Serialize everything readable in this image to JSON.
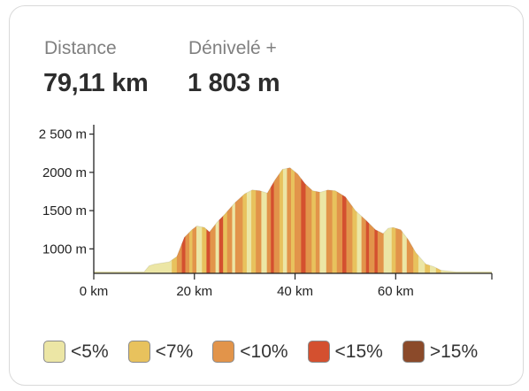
{
  "stats": {
    "distance_label": "Distance",
    "distance_value": "79,11 km",
    "elevation_label": "Dénivelé +",
    "elevation_value": "1 803 m"
  },
  "chart_data": {
    "type": "area",
    "title": "",
    "xlabel": "",
    "ylabel": "",
    "x_unit": "km",
    "y_unit": "m",
    "xlim": [
      0,
      79.11
    ],
    "ylim": [
      680,
      2530
    ],
    "x_ticks": [
      0,
      20,
      40,
      60
    ],
    "x_tick_labels": [
      "0 km",
      "20 km",
      "40 km",
      "60 km"
    ],
    "y_ticks": [
      1000,
      1500,
      2000,
      2500
    ],
    "y_tick_labels": [
      "1000 m",
      "1500 m",
      "2000 m",
      "2 500 m"
    ],
    "grid": false,
    "legend_position": "bottom",
    "profile": [
      {
        "x": 0,
        "y": 700
      },
      {
        "x": 10,
        "y": 700
      },
      {
        "x": 11,
        "y": 780
      },
      {
        "x": 12,
        "y": 800
      },
      {
        "x": 15,
        "y": 830
      },
      {
        "x": 16.5,
        "y": 900
      },
      {
        "x": 18,
        "y": 1150
      },
      {
        "x": 19.5,
        "y": 1250
      },
      {
        "x": 20.5,
        "y": 1300
      },
      {
        "x": 22,
        "y": 1280
      },
      {
        "x": 23,
        "y": 1220
      },
      {
        "x": 24.5,
        "y": 1350
      },
      {
        "x": 26,
        "y": 1450
      },
      {
        "x": 28,
        "y": 1600
      },
      {
        "x": 30,
        "y": 1720
      },
      {
        "x": 31.5,
        "y": 1770
      },
      {
        "x": 33,
        "y": 1760
      },
      {
        "x": 34.5,
        "y": 1730
      },
      {
        "x": 36,
        "y": 1900
      },
      {
        "x": 37.5,
        "y": 2040
      },
      {
        "x": 39,
        "y": 2060
      },
      {
        "x": 40.5,
        "y": 1980
      },
      {
        "x": 42,
        "y": 1850
      },
      {
        "x": 43.5,
        "y": 1760
      },
      {
        "x": 45,
        "y": 1740
      },
      {
        "x": 46.5,
        "y": 1770
      },
      {
        "x": 48,
        "y": 1760
      },
      {
        "x": 50,
        "y": 1680
      },
      {
        "x": 52,
        "y": 1500
      },
      {
        "x": 54,
        "y": 1380
      },
      {
        "x": 56,
        "y": 1250
      },
      {
        "x": 57.5,
        "y": 1200
      },
      {
        "x": 58.5,
        "y": 1270
      },
      {
        "x": 59.5,
        "y": 1280
      },
      {
        "x": 61,
        "y": 1250
      },
      {
        "x": 62.5,
        "y": 1120
      },
      {
        "x": 64,
        "y": 950
      },
      {
        "x": 66,
        "y": 800
      },
      {
        "x": 67.5,
        "y": 770
      },
      {
        "x": 69,
        "y": 720
      },
      {
        "x": 72,
        "y": 700
      },
      {
        "x": 79.11,
        "y": 700
      }
    ],
    "segments": [
      [
        0,
        10,
        0
      ],
      [
        10,
        12,
        0
      ],
      [
        12,
        15.5,
        0
      ],
      [
        15.5,
        16.5,
        1
      ],
      [
        16.5,
        17.5,
        2
      ],
      [
        17.5,
        18.2,
        3
      ],
      [
        18.2,
        19,
        2
      ],
      [
        19,
        19.6,
        1
      ],
      [
        19.6,
        20.4,
        2
      ],
      [
        20.4,
        21.5,
        0
      ],
      [
        21.5,
        22.4,
        1
      ],
      [
        22.4,
        23.1,
        3
      ],
      [
        23.1,
        24.2,
        2
      ],
      [
        24.2,
        24.9,
        0
      ],
      [
        24.9,
        25.7,
        3
      ],
      [
        25.7,
        26.5,
        1
      ],
      [
        26.5,
        27.5,
        2
      ],
      [
        27.5,
        28.1,
        0
      ],
      [
        28.1,
        29.6,
        2
      ],
      [
        29.6,
        30.4,
        1
      ],
      [
        30.4,
        31.3,
        0
      ],
      [
        31.3,
        32.2,
        1
      ],
      [
        32.2,
        33.3,
        2
      ],
      [
        33.3,
        34.4,
        0
      ],
      [
        34.4,
        35.2,
        2
      ],
      [
        35.2,
        35.8,
        3
      ],
      [
        35.8,
        36.9,
        2
      ],
      [
        36.9,
        37.6,
        1
      ],
      [
        37.6,
        38.4,
        0
      ],
      [
        38.4,
        39.2,
        2
      ],
      [
        39.2,
        39.9,
        1
      ],
      [
        39.9,
        41.2,
        2
      ],
      [
        41.2,
        42.1,
        3
      ],
      [
        42.1,
        43.3,
        2
      ],
      [
        43.3,
        44.1,
        1
      ],
      [
        44.1,
        44.9,
        2
      ],
      [
        44.9,
        46.2,
        0
      ],
      [
        46.2,
        47.4,
        2
      ],
      [
        47.4,
        48.3,
        1
      ],
      [
        48.3,
        49.4,
        2
      ],
      [
        49.4,
        50.2,
        3
      ],
      [
        50.2,
        51.4,
        2
      ],
      [
        51.4,
        52.3,
        1
      ],
      [
        52.3,
        53.2,
        0
      ],
      [
        53.2,
        54.1,
        2
      ],
      [
        54.1,
        54.7,
        3
      ],
      [
        54.7,
        55.8,
        2
      ],
      [
        55.8,
        56.4,
        3
      ],
      [
        56.4,
        57.6,
        2
      ],
      [
        57.6,
        59.2,
        0
      ],
      [
        59.2,
        60,
        1
      ],
      [
        60,
        61.3,
        2
      ],
      [
        61.3,
        62.2,
        0
      ],
      [
        62.2,
        63.5,
        2
      ],
      [
        63.5,
        64.5,
        1
      ],
      [
        64.5,
        65.8,
        0
      ],
      [
        65.8,
        66.8,
        1
      ],
      [
        66.8,
        68,
        0
      ],
      [
        68,
        69,
        1
      ],
      [
        69,
        79.11,
        0
      ]
    ],
    "legend": [
      {
        "label": "<5%",
        "color": "#ece6a5"
      },
      {
        "label": "<7%",
        "color": "#e8c25d"
      },
      {
        "label": "<10%",
        "color": "#e2944a"
      },
      {
        "label": "<15%",
        "color": "#d4502f"
      },
      {
        "label": ">15%",
        "color": "#8b4a2a"
      }
    ]
  }
}
